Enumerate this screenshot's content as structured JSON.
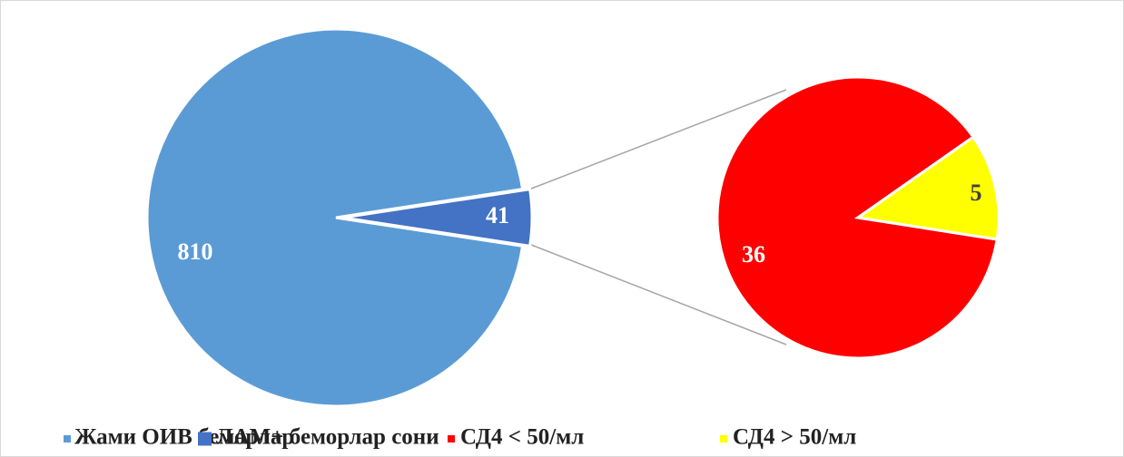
{
  "chart_data": [
    {
      "type": "pie",
      "categories": [
        "Жами ОИВ беморлар",
        "ЛАМ+ беморлар сони"
      ],
      "values": [
        810,
        41
      ],
      "colors": [
        "#5b9bd5",
        "#4472c4"
      ]
    },
    {
      "type": "pie",
      "categories": [
        "СД4 < 50/мл",
        "СД4 > 50/мл"
      ],
      "values": [
        36,
        5
      ],
      "colors": [
        "#ff0000",
        "#ffff00"
      ]
    }
  ]
}
